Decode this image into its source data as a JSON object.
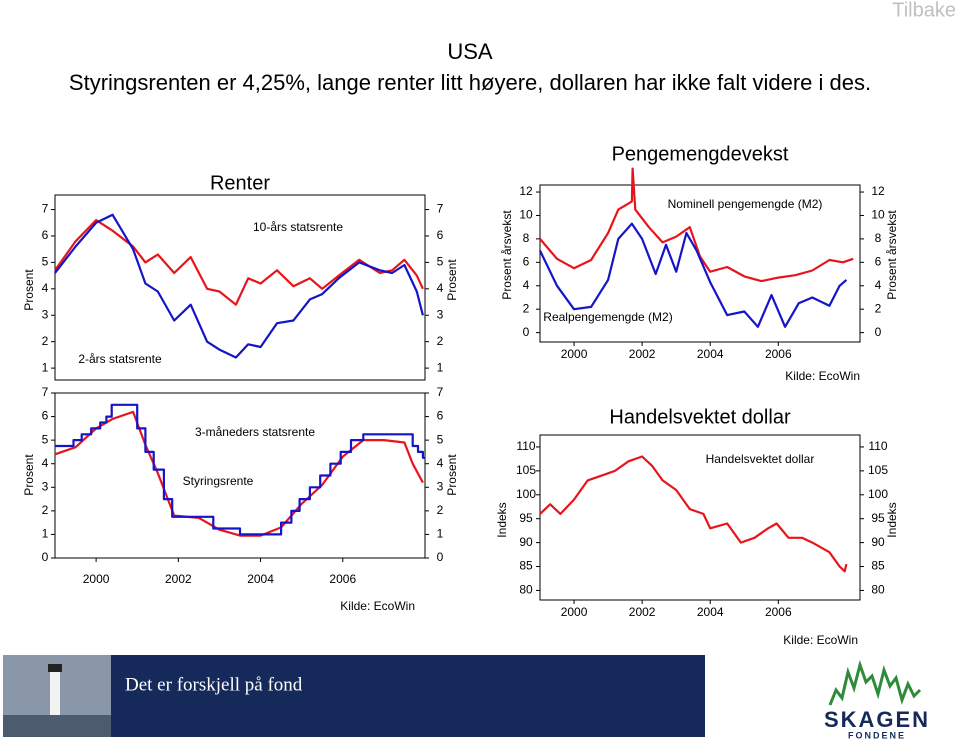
{
  "nav": {
    "back": "Tilbake"
  },
  "header": {
    "title": "USA",
    "subtitle": "Styringsrenten er 4,25%, lange renter litt høyere, dollaren har ikke falt videre i des."
  },
  "chart_data": [
    {
      "type": "line",
      "title": "Renter",
      "ylabel": "Prosent",
      "y2label": "Prosent",
      "xlim": [
        1999,
        2008
      ],
      "ylim": [
        0.55,
        7.55
      ],
      "yticks": [
        1,
        2,
        3,
        4,
        5,
        6,
        7
      ],
      "y2lim": [
        0.55,
        7.55
      ],
      "y2ticks": [
        1,
        2,
        3,
        4,
        5,
        6,
        7
      ],
      "series": [
        {
          "name": "10-års statsrente",
          "color": "#e8141b",
          "x": [
            1999.0,
            1999.5,
            2000.0,
            2000.4,
            2000.9,
            2001.2,
            2001.5,
            2001.9,
            2002.3,
            2002.7,
            2003.0,
            2003.4,
            2003.7,
            2004.0,
            2004.4,
            2004.8,
            2005.2,
            2005.5,
            2005.9,
            2006.4,
            2006.9,
            2007.2,
            2007.5,
            2007.8,
            2007.95
          ],
          "values": [
            4.7,
            5.8,
            6.6,
            6.2,
            5.6,
            5.0,
            5.3,
            4.6,
            5.2,
            4.0,
            3.9,
            3.4,
            4.4,
            4.2,
            4.7,
            4.1,
            4.4,
            4.0,
            4.5,
            5.1,
            4.6,
            4.7,
            5.1,
            4.5,
            4.0
          ]
        },
        {
          "name": "2-års statsrente",
          "color": "#1414c8",
          "x": [
            1999.0,
            1999.5,
            2000.0,
            2000.4,
            2000.9,
            2001.2,
            2001.5,
            2001.9,
            2002.3,
            2002.7,
            2003.0,
            2003.4,
            2003.7,
            2004.0,
            2004.4,
            2004.8,
            2005.2,
            2005.5,
            2005.9,
            2006.4,
            2006.9,
            2007.2,
            2007.5,
            2007.8,
            2007.95
          ],
          "values": [
            4.6,
            5.6,
            6.5,
            6.8,
            5.5,
            4.2,
            3.9,
            2.8,
            3.4,
            2.0,
            1.7,
            1.4,
            1.9,
            1.8,
            2.7,
            2.8,
            3.6,
            3.8,
            4.4,
            5.0,
            4.7,
            4.6,
            4.9,
            3.9,
            3.0
          ]
        }
      ]
    },
    {
      "type": "line",
      "ylabel": "Prosent",
      "y2label": "Prosent",
      "source": "Kilde: EcoWin",
      "xlim": [
        1999,
        2008
      ],
      "xticks": [
        2000,
        2002,
        2004,
        2006
      ],
      "ylim": [
        0,
        7
      ],
      "yticks": [
        0,
        1,
        2,
        3,
        4,
        5,
        6,
        7
      ],
      "y2lim": [
        0,
        7
      ],
      "y2ticks": [
        0,
        1,
        2,
        3,
        4,
        5,
        6,
        7
      ],
      "series": [
        {
          "name": "3-måneders statsrente",
          "color": "#e8141b",
          "x": [
            1999.0,
            1999.5,
            2000.0,
            2000.4,
            2000.9,
            2001.2,
            2001.5,
            2001.9,
            2002.5,
            2003.0,
            2003.5,
            2004.0,
            2004.5,
            2005.0,
            2005.5,
            2006.0,
            2006.5,
            2007.0,
            2007.5,
            2007.7,
            2007.95
          ],
          "values": [
            4.4,
            4.7,
            5.5,
            5.9,
            6.2,
            4.8,
            3.6,
            1.8,
            1.7,
            1.2,
            0.95,
            0.95,
            1.3,
            2.3,
            3.1,
            4.3,
            5.0,
            5.0,
            4.9,
            4.0,
            3.2
          ]
        },
        {
          "name": "Styringsrente",
          "color": "#1414c8",
          "x": [
            1999.0,
            1999.45,
            1999.45,
            1999.65,
            1999.65,
            1999.88,
            1999.88,
            2000.1,
            2000.1,
            2000.25,
            2000.25,
            2000.38,
            2000.38,
            2001.0,
            2001.0,
            2001.2,
            2001.2,
            2001.4,
            2001.4,
            2001.65,
            2001.65,
            2001.85,
            2001.85,
            2002.85,
            2002.85,
            2003.5,
            2003.5,
            2004.5,
            2004.5,
            2004.75,
            2004.75,
            2004.95,
            2004.95,
            2005.2,
            2005.2,
            2005.45,
            2005.45,
            2005.7,
            2005.7,
            2005.95,
            2005.95,
            2006.2,
            2006.2,
            2006.5,
            2006.5,
            2007.7,
            2007.7,
            2007.83,
            2007.83,
            2007.95,
            2007.95,
            2008.0
          ],
          "values": [
            4.75,
            4.75,
            5.0,
            5.0,
            5.25,
            5.25,
            5.5,
            5.5,
            5.75,
            5.75,
            6.0,
            6.0,
            6.5,
            6.5,
            5.5,
            5.5,
            4.5,
            4.5,
            3.75,
            3.75,
            2.5,
            2.5,
            1.75,
            1.75,
            1.25,
            1.25,
            1.0,
            1.0,
            1.5,
            1.5,
            2.0,
            2.0,
            2.5,
            2.5,
            3.0,
            3.0,
            3.5,
            3.5,
            4.0,
            4.0,
            4.5,
            4.5,
            5.0,
            5.0,
            5.25,
            5.25,
            4.75,
            4.75,
            4.5,
            4.5,
            4.25,
            4.25
          ]
        }
      ]
    },
    {
      "type": "line",
      "title": "Pengemengdevekst",
      "ylabel": "Prosent årsvekst",
      "y2label": "Prosent årsvekst",
      "source": "Kilde: EcoWin",
      "xlim": [
        1999,
        2008.4
      ],
      "xticks": [
        2000,
        2002,
        2004,
        2006
      ],
      "ylim": [
        -0.8,
        12.6
      ],
      "yticks": [
        0,
        2,
        4,
        6,
        8,
        10,
        12
      ],
      "y2lim": [
        -0.8,
        12.6
      ],
      "y2ticks": [
        0,
        2,
        4,
        6,
        8,
        10,
        12
      ],
      "series": [
        {
          "name": "Nominell pengemengde (M2)",
          "color": "#e8141b",
          "x": [
            1999.0,
            1999.5,
            2000.0,
            2000.5,
            2001.0,
            2001.3,
            2001.7,
            2001.72,
            2001.8,
            2002.2,
            2002.6,
            2003.0,
            2003.4,
            2003.7,
            2004.0,
            2004.5,
            2005.0,
            2005.5,
            2006.0,
            2006.5,
            2007.0,
            2007.5,
            2007.9,
            2008.2
          ],
          "values": [
            8,
            6.3,
            5.5,
            6.2,
            8.5,
            10.5,
            11.2,
            14,
            10.5,
            9,
            7.7,
            8.2,
            9,
            6.5,
            5.2,
            5.6,
            4.8,
            4.4,
            4.7,
            4.9,
            5.3,
            6.2,
            6.0,
            6.3
          ]
        },
        {
          "name": "Realpengemengde (M2)",
          "color": "#1414c8",
          "x": [
            1999.0,
            1999.5,
            2000.0,
            2000.5,
            2001.0,
            2001.3,
            2001.7,
            2002.0,
            2002.4,
            2002.7,
            2003.0,
            2003.3,
            2003.6,
            2004.0,
            2004.5,
            2005.0,
            2005.4,
            2005.8,
            2006.2,
            2006.6,
            2007.0,
            2007.5,
            2007.8,
            2008.0
          ],
          "values": [
            7.0,
            4.0,
            2.0,
            2.2,
            4.5,
            8,
            9.3,
            8.0,
            5,
            7.5,
            5.2,
            8.5,
            7.0,
            4.3,
            1.5,
            1.8,
            0.5,
            3.2,
            0.5,
            2.5,
            3.0,
            2.3,
            4.0,
            4.5
          ]
        }
      ]
    },
    {
      "type": "line",
      "title": "Handelsvektet dollar",
      "ylabel": "Indeks",
      "y2label": "Indeks",
      "source": "Kilde: EcoWin",
      "xlim": [
        1999,
        2008.4
      ],
      "xticks": [
        2000,
        2002,
        2004,
        2006
      ],
      "ylim": [
        78,
        112.5
      ],
      "yticks": [
        80,
        85,
        90,
        95,
        100,
        105,
        110
      ],
      "y2lim": [
        78,
        112.5
      ],
      "y2ticks": [
        80,
        85,
        90,
        95,
        100,
        105,
        110
      ],
      "series": [
        {
          "name": "Handelsvektet dollar",
          "color": "#e8141b",
          "x": [
            1999.0,
            1999.3,
            1999.6,
            2000.0,
            2000.4,
            2000.8,
            2001.2,
            2001.6,
            2002.0,
            2002.3,
            2002.6,
            2003.0,
            2003.4,
            2003.8,
            2004.0,
            2004.5,
            2004.9,
            2005.3,
            2005.7,
            2005.95,
            2006.3,
            2006.7,
            2007.0,
            2007.5,
            2007.8,
            2007.95,
            2008.0
          ],
          "values": [
            96,
            98,
            96,
            99,
            103,
            104,
            105,
            107,
            108,
            106,
            103,
            101,
            97,
            96,
            93,
            94,
            90,
            91,
            93,
            94,
            91,
            91,
            90,
            88,
            85,
            84,
            85.5
          ]
        }
      ]
    }
  ],
  "footer": {
    "slogan": "Det er forskjell på fond",
    "brand": "SKAGEN",
    "brand_sub": "FONDENE"
  }
}
